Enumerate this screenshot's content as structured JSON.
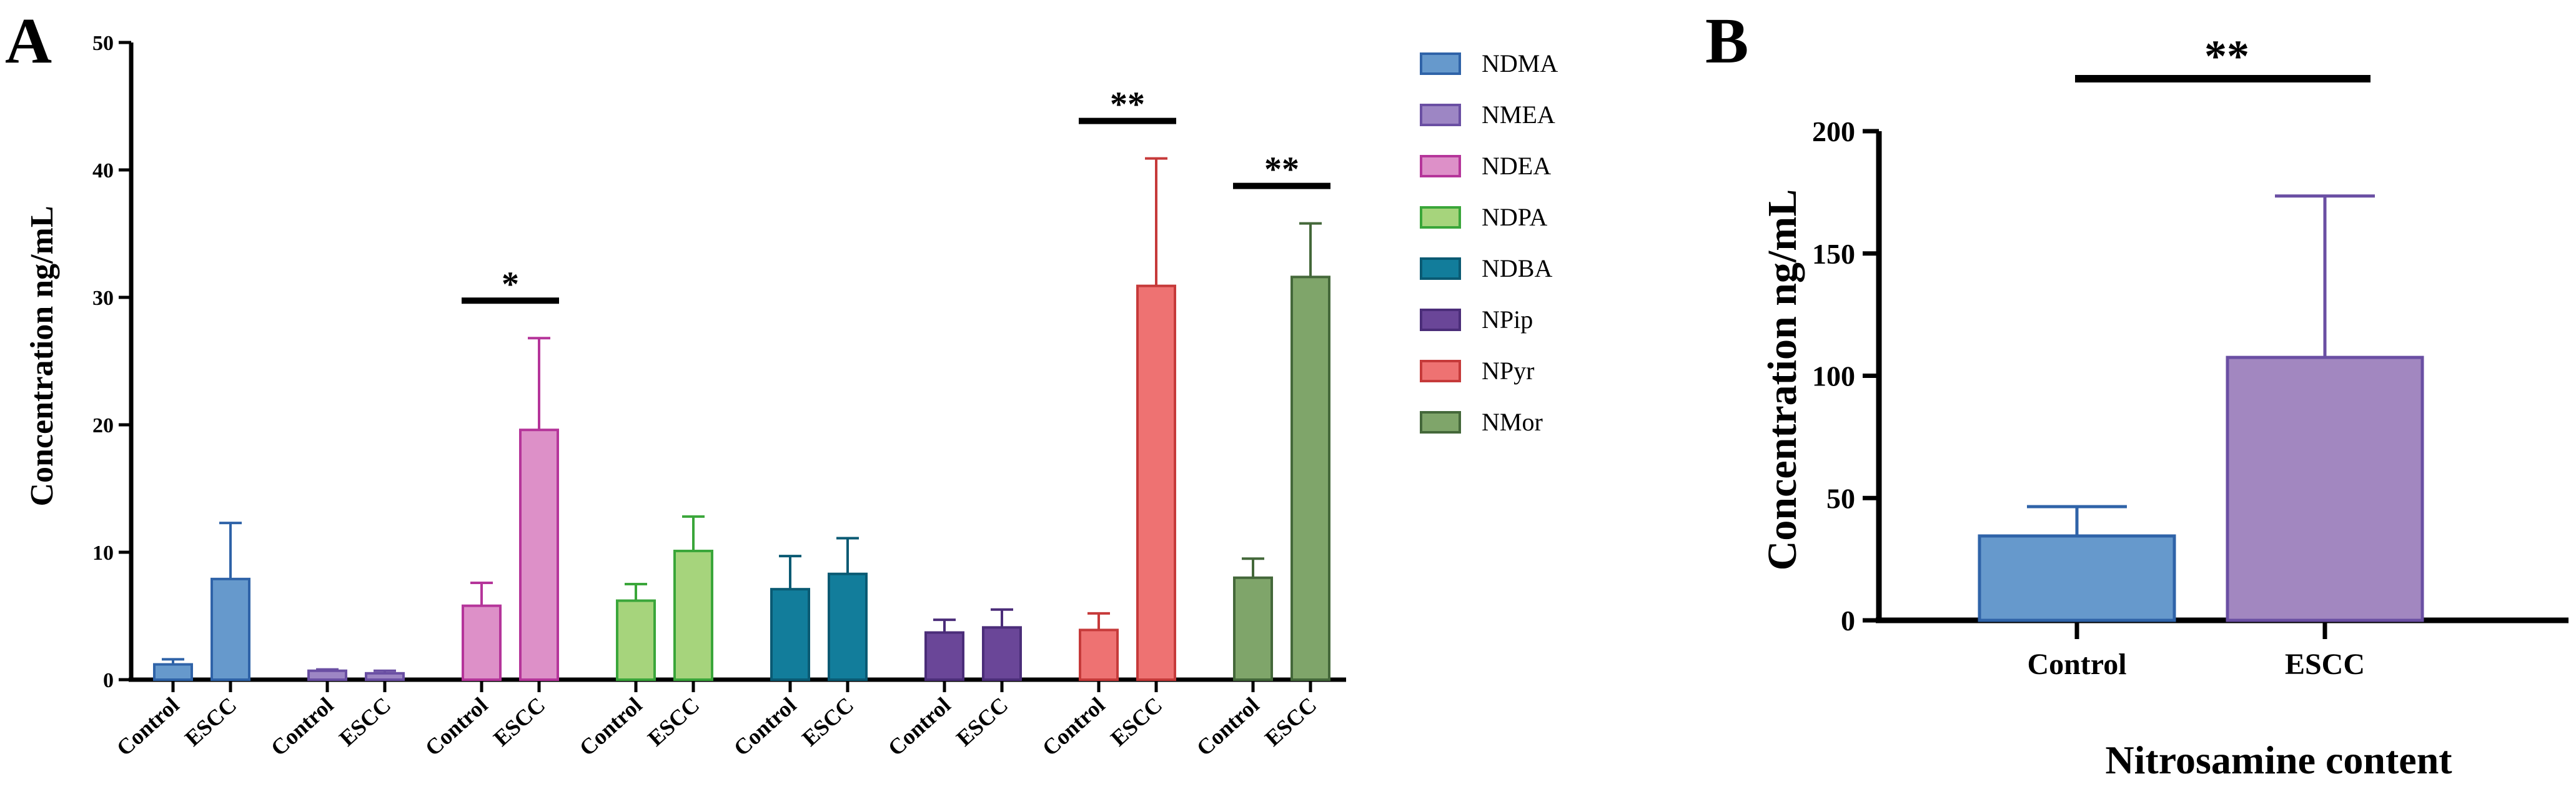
{
  "panels": [
    {
      "label": "A",
      "ylabel": "Concentration ng/mL",
      "yticks": [
        "0",
        "10",
        "20",
        "30",
        "40",
        "50"
      ],
      "group_labels": [
        "Control",
        "ESCC"
      ]
    },
    {
      "label": "B",
      "ylabel": "Concentration ng/mL",
      "xlabel": "Nitrosamine content",
      "yticks": [
        "0",
        "50",
        "100",
        "150",
        "200"
      ]
    }
  ],
  "chart_data": [
    {
      "type": "bar",
      "panel": "A",
      "title": "",
      "xlabel": "",
      "ylabel": "Concentration ng/mL",
      "ylim": [
        0,
        50
      ],
      "categories": [
        "Control",
        "ESCC"
      ],
      "legend_position": "right",
      "series": [
        {
          "name": "NDMA",
          "values": [
            1.2,
            7.9
          ],
          "errors": [
            0.4,
            4.4
          ],
          "color": "#6699cc",
          "edge": "#2f63a8",
          "significance": ""
        },
        {
          "name": "NMEA",
          "values": [
            0.7,
            0.5
          ],
          "errors": [
            0.1,
            0.2
          ],
          "color": "#9d86c4",
          "edge": "#6a4fa3",
          "significance": ""
        },
        {
          "name": "NDEA",
          "values": [
            5.8,
            19.6
          ],
          "errors": [
            1.8,
            7.2
          ],
          "color": "#dd90c8",
          "edge": "#b5359a",
          "significance": "*"
        },
        {
          "name": "NDPA",
          "values": [
            6.2,
            10.1
          ],
          "errors": [
            1.3,
            2.7
          ],
          "color": "#a6d47c",
          "edge": "#3aa63a",
          "significance": ""
        },
        {
          "name": "NDBA",
          "values": [
            7.1,
            8.3
          ],
          "errors": [
            2.6,
            2.8
          ],
          "color": "#127d9b",
          "edge": "#0a5a73",
          "significance": ""
        },
        {
          "name": "NPip",
          "values": [
            3.7,
            4.1
          ],
          "errors": [
            1.0,
            1.4
          ],
          "color": "#6a4698",
          "edge": "#4b2d79",
          "significance": ""
        },
        {
          "name": "NPyr",
          "values": [
            3.9,
            30.9
          ],
          "errors": [
            1.3,
            10.0
          ],
          "color": "#ee7272",
          "edge": "#c63a3a",
          "significance": "**"
        },
        {
          "name": "NMor",
          "values": [
            8.0,
            31.6
          ],
          "errors": [
            1.5,
            4.2
          ],
          "color": "#7fa56a",
          "edge": "#44683a",
          "significance": "**"
        }
      ]
    },
    {
      "type": "bar",
      "panel": "B",
      "title": "",
      "xlabel": "Nitrosamine content",
      "ylabel": "Concentration ng/mL",
      "ylim": [
        0,
        200
      ],
      "categories": [
        "Control",
        "ESCC"
      ],
      "values": [
        34.5,
        107.5
      ],
      "errors": [
        12.0,
        66.0
      ],
      "colors": [
        "#6699cc",
        "#a287c0"
      ],
      "edges": [
        "#2f63a8",
        "#6a4fa3"
      ],
      "significance": "**"
    }
  ]
}
